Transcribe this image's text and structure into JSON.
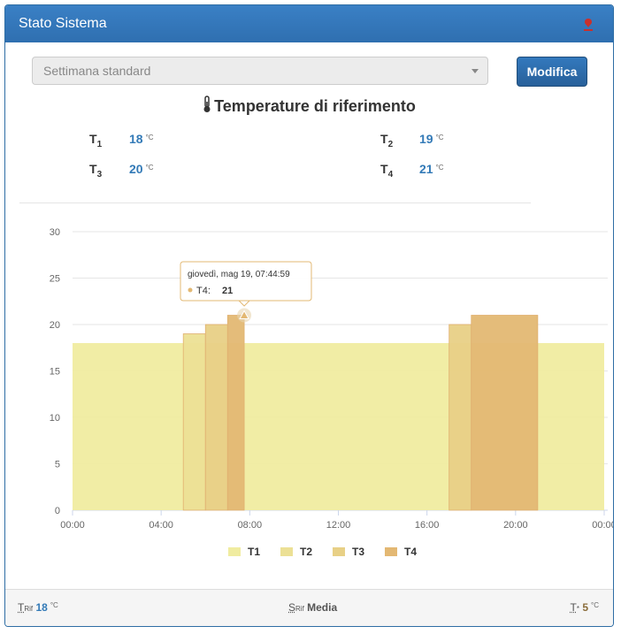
{
  "header": {
    "title": "Stato Sistema",
    "icon": "pin-icon",
    "accent": "#2f6fb0"
  },
  "selector": {
    "value": "Settimana standard"
  },
  "actions": {
    "edit_label": "Modifica"
  },
  "reference": {
    "title": "Temperature di riferimento",
    "unit": "°C",
    "items": [
      {
        "label": "T",
        "sub": "1",
        "value": "18"
      },
      {
        "label": "T",
        "sub": "2",
        "value": "19"
      },
      {
        "label": "T",
        "sub": "3",
        "value": "20"
      },
      {
        "label": "T",
        "sub": "4",
        "value": "21"
      }
    ]
  },
  "chart_data": {
    "type": "area",
    "x_unit": "hour",
    "xlim": [
      0,
      24
    ],
    "ylim": [
      0,
      30
    ],
    "x_ticks": [
      "00:00",
      "04:00",
      "08:00",
      "12:00",
      "16:00",
      "20:00",
      "00:00"
    ],
    "y_ticks": [
      0,
      5,
      10,
      15,
      20,
      25,
      30
    ],
    "grid": true,
    "legend_position": "bottom",
    "series": [
      {
        "name": "T1",
        "color": "#f0eca0",
        "segments": [
          [
            0,
            5,
            18
          ],
          [
            5,
            6,
            18
          ],
          [
            6,
            7,
            18
          ],
          [
            7,
            7.75,
            18
          ],
          [
            7.75,
            17,
            18
          ],
          [
            17,
            18,
            18
          ],
          [
            18,
            21,
            18
          ],
          [
            21,
            24,
            18
          ]
        ]
      },
      {
        "name": "T2",
        "color": "#ece095",
        "segments": [
          [
            5,
            6,
            19
          ]
        ]
      },
      {
        "name": "T3",
        "color": "#e8d086",
        "segments": [
          [
            6,
            7,
            20
          ],
          [
            17,
            18,
            20
          ]
        ]
      },
      {
        "name": "T4",
        "color": "#e3b873",
        "segments": [
          [
            7,
            7.75,
            21
          ],
          [
            18,
            21,
            21
          ]
        ]
      }
    ],
    "tooltip": {
      "title": "giovedì, mag 19, 07:44:59",
      "series": "T4",
      "value": "21",
      "x": 7.75,
      "y": 21
    }
  },
  "footer": {
    "left_label": "T",
    "left_sub": "Rif",
    "left_value": "18",
    "left_unit": "°C",
    "mid_label": "S",
    "mid_sub": "Rif",
    "mid_value": "Media",
    "right_label": "T",
    "right_sub": "*",
    "right_value": "5",
    "right_unit": "°C"
  }
}
